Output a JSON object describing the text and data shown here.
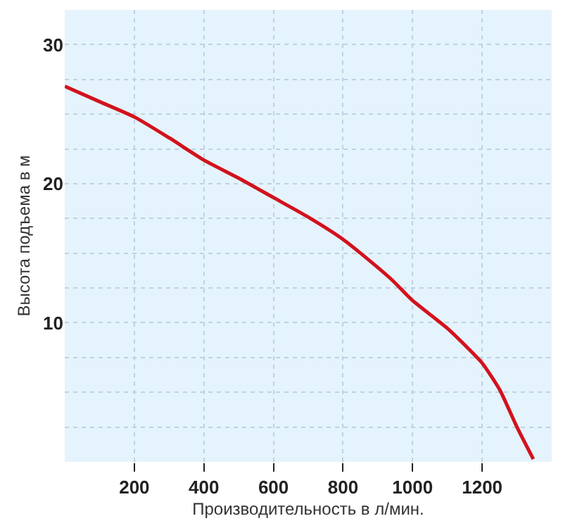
{
  "chart_data": {
    "type": "line",
    "xlabel": "Производительность в л/мин.",
    "ylabel": "Высота подъема в м",
    "x": [
      0,
      100,
      200,
      300,
      400,
      500,
      600,
      700,
      800,
      870,
      940,
      1000,
      1050,
      1100,
      1150,
      1200,
      1250,
      1300,
      1347
    ],
    "series": [
      {
        "color": "#d2121d",
        "values": [
          27.0,
          25.9,
          24.8,
          23.3,
          21.7,
          20.4,
          19.0,
          17.6,
          16.0,
          14.6,
          13.1,
          11.6,
          10.6,
          9.6,
          8.4,
          7.1,
          5.2,
          2.5,
          0.2
        ]
      }
    ],
    "xlim": [
      0,
      1400
    ],
    "xticks": [
      200,
      400,
      600,
      800,
      1000,
      1200
    ],
    "ylim": [
      0,
      32.5
    ],
    "yticks": [
      {
        "value": 2.5,
        "label": null
      },
      {
        "value": 5,
        "label": null
      },
      {
        "value": 7.5,
        "label": null
      },
      10,
      {
        "value": 12.5,
        "label": null
      },
      {
        "value": 15,
        "label": null
      },
      {
        "value": 17.5,
        "label": null
      },
      20,
      {
        "value": 22.5,
        "label": null
      },
      {
        "value": 25,
        "label": null
      },
      {
        "value": 27.5,
        "label": null
      },
      30
    ],
    "grid": true,
    "legend": false,
    "marker": "none",
    "line_style": "solid"
  }
}
